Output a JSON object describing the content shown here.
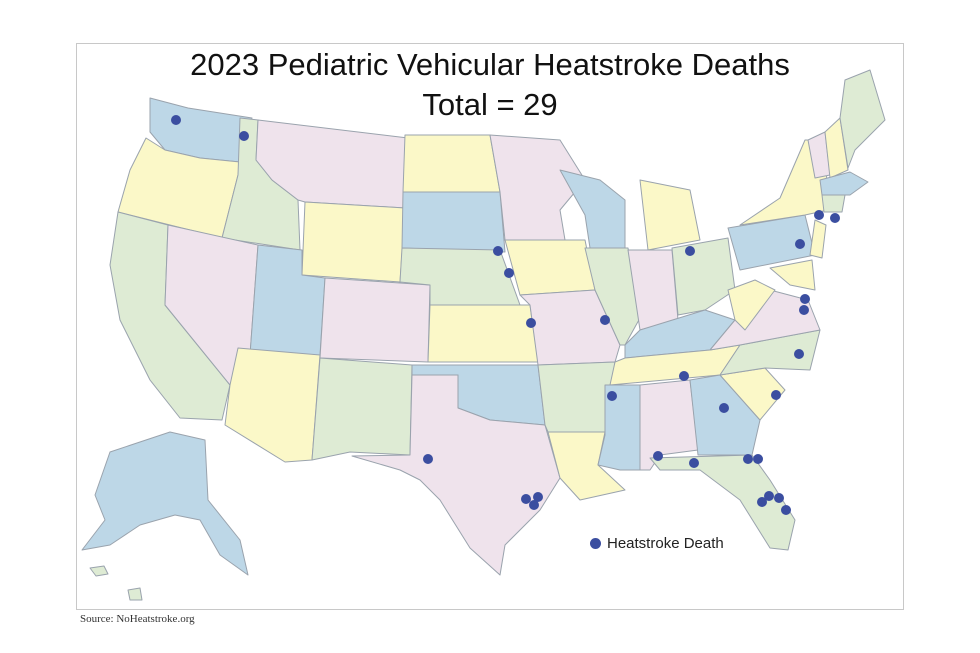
{
  "title": "2023 Pediatric Vehicular Heatstroke Deaths",
  "subtitle": "Total = 29",
  "legend": {
    "label": "Heatstroke Death"
  },
  "source": "Source: NoHeatstroke.org",
  "colors": {
    "pink": "#efe3ec",
    "yellow": "#fbf8c8",
    "green": "#deebd4",
    "blue": "#bdd7e7",
    "dot": "#3b4ea0"
  }
}
